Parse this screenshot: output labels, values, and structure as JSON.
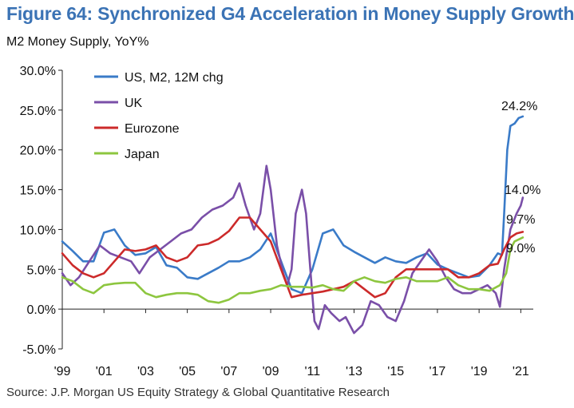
{
  "title": "Figure 64: Synchronized G4 Acceleration in Money Supply Growth",
  "subtitle": "M2 Money Supply, YoY%",
  "source": "Source: J.P. Morgan US Equity Strategy & Global Quantitative Research",
  "colors": {
    "title": "#3b73b5",
    "axis": "#222222"
  },
  "chart_data": {
    "type": "line",
    "title": "Figure 64: Synchronized G4 Acceleration in Money Supply Growth",
    "subtitle": "M2 Money Supply, YoY%",
    "xlabel": "",
    "ylabel": "",
    "xlim": [
      1999,
      2021.6
    ],
    "ylim": [
      -5,
      30
    ],
    "grid": false,
    "legend_position": "top-left",
    "x_ticks": [
      {
        "value": 1999,
        "label": "'99"
      },
      {
        "value": 2001,
        "label": "'01"
      },
      {
        "value": 2003,
        "label": "'03"
      },
      {
        "value": 2005,
        "label": "'05"
      },
      {
        "value": 2007,
        "label": "'07"
      },
      {
        "value": 2009,
        "label": "'09"
      },
      {
        "value": 2011,
        "label": "'11"
      },
      {
        "value": 2013,
        "label": "'13"
      },
      {
        "value": 2015,
        "label": "'15"
      },
      {
        "value": 2017,
        "label": "'17"
      },
      {
        "value": 2019,
        "label": "'19"
      },
      {
        "value": 2021,
        "label": "'21"
      }
    ],
    "y_ticks": [
      {
        "value": 30,
        "label": "30.0%"
      },
      {
        "value": 25,
        "label": "25.0%"
      },
      {
        "value": 20,
        "label": "20.0%"
      },
      {
        "value": 15,
        "label": "15.0%"
      },
      {
        "value": 10,
        "label": "10.0%"
      },
      {
        "value": 5,
        "label": "5.0%"
      },
      {
        "value": 0,
        "label": "0.0%"
      },
      {
        "value": -5,
        "label": "-5.0%"
      }
    ],
    "series": [
      {
        "name": "US, M2, 12M chg",
        "color": "#3a7bc8",
        "end_label": "24.2%",
        "points": [
          [
            1999,
            8.5
          ],
          [
            1999.5,
            7.3
          ],
          [
            2000,
            6.0
          ],
          [
            2000.5,
            6.0
          ],
          [
            2001,
            9.6
          ],
          [
            2001.5,
            10.0
          ],
          [
            2002,
            8.0
          ],
          [
            2002.5,
            6.8
          ],
          [
            2003,
            7.0
          ],
          [
            2003.5,
            7.8
          ],
          [
            2004,
            5.5
          ],
          [
            2004.5,
            5.2
          ],
          [
            2005,
            4.0
          ],
          [
            2005.5,
            3.8
          ],
          [
            2006,
            4.5
          ],
          [
            2006.5,
            5.2
          ],
          [
            2007,
            6.0
          ],
          [
            2007.5,
            6.0
          ],
          [
            2008,
            6.5
          ],
          [
            2008.5,
            7.5
          ],
          [
            2009,
            9.5
          ],
          [
            2009.5,
            6.0
          ],
          [
            2010,
            2.5
          ],
          [
            2010.5,
            2.0
          ],
          [
            2011,
            5.0
          ],
          [
            2011.5,
            9.5
          ],
          [
            2012,
            10.0
          ],
          [
            2012.5,
            8.0
          ],
          [
            2013,
            7.2
          ],
          [
            2013.5,
            6.5
          ],
          [
            2014,
            5.8
          ],
          [
            2014.5,
            6.5
          ],
          [
            2015,
            6.0
          ],
          [
            2015.5,
            5.8
          ],
          [
            2016,
            6.5
          ],
          [
            2016.5,
            7.0
          ],
          [
            2017,
            5.6
          ],
          [
            2017.5,
            5.0
          ],
          [
            2018,
            4.5
          ],
          [
            2018.5,
            4.0
          ],
          [
            2019,
            4.2
          ],
          [
            2019.5,
            5.5
          ],
          [
            2019.9,
            7.0
          ],
          [
            2020.1,
            6.8
          ],
          [
            2020.2,
            12.0
          ],
          [
            2020.35,
            20.0
          ],
          [
            2020.5,
            23.0
          ],
          [
            2020.7,
            23.3
          ],
          [
            2020.9,
            24.0
          ],
          [
            2021.1,
            24.2
          ]
        ]
      },
      {
        "name": "UK",
        "color": "#7a4fa8",
        "end_label": "14.0%",
        "points": [
          [
            1999,
            4.5
          ],
          [
            1999.4,
            3.0
          ],
          [
            1999.8,
            4.0
          ],
          [
            2000.3,
            6.0
          ],
          [
            2000.8,
            8.0
          ],
          [
            2001.3,
            7.0
          ],
          [
            2001.8,
            6.5
          ],
          [
            2002.3,
            6.0
          ],
          [
            2002.7,
            4.5
          ],
          [
            2003.2,
            6.5
          ],
          [
            2003.7,
            7.5
          ],
          [
            2004.2,
            8.5
          ],
          [
            2004.7,
            9.5
          ],
          [
            2005.2,
            10.0
          ],
          [
            2005.7,
            11.5
          ],
          [
            2006.2,
            12.5
          ],
          [
            2006.7,
            13.0
          ],
          [
            2007.2,
            14.0
          ],
          [
            2007.5,
            15.8
          ],
          [
            2007.8,
            13.0
          ],
          [
            2008.2,
            10.0
          ],
          [
            2008.5,
            12.0
          ],
          [
            2008.8,
            18.0
          ],
          [
            2009.0,
            15.0
          ],
          [
            2009.3,
            8.0
          ],
          [
            2009.6,
            4.5
          ],
          [
            2009.8,
            3.0
          ],
          [
            2010.0,
            5.0
          ],
          [
            2010.2,
            12.0
          ],
          [
            2010.5,
            15.0
          ],
          [
            2010.7,
            12.0
          ],
          [
            2010.9,
            5.0
          ],
          [
            2011.1,
            -1.5
          ],
          [
            2011.3,
            -2.5
          ],
          [
            2011.6,
            0.5
          ],
          [
            2011.9,
            -0.5
          ],
          [
            2012.3,
            -1.5
          ],
          [
            2012.6,
            -1.0
          ],
          [
            2013.0,
            -3.0
          ],
          [
            2013.4,
            -2.0
          ],
          [
            2013.8,
            1.0
          ],
          [
            2014.2,
            0.5
          ],
          [
            2014.6,
            -1.0
          ],
          [
            2015.0,
            -1.5
          ],
          [
            2015.4,
            1.0
          ],
          [
            2015.8,
            4.5
          ],
          [
            2016.2,
            6.0
          ],
          [
            2016.6,
            7.5
          ],
          [
            2017.0,
            6.0
          ],
          [
            2017.4,
            4.0
          ],
          [
            2017.8,
            2.5
          ],
          [
            2018.2,
            2.0
          ],
          [
            2018.6,
            2.0
          ],
          [
            2019.0,
            2.5
          ],
          [
            2019.4,
            3.0
          ],
          [
            2019.8,
            2.0
          ],
          [
            2020.0,
            0.3
          ],
          [
            2020.2,
            5.0
          ],
          [
            2020.5,
            10.0
          ],
          [
            2020.8,
            12.0
          ],
          [
            2021.0,
            13.0
          ],
          [
            2021.1,
            14.0
          ]
        ]
      },
      {
        "name": "Eurozone",
        "color": "#cc2a2a",
        "end_label": "9.7%",
        "points": [
          [
            1999,
            7.0
          ],
          [
            1999.5,
            5.5
          ],
          [
            2000,
            4.5
          ],
          [
            2000.5,
            4.0
          ],
          [
            2001,
            4.5
          ],
          [
            2001.5,
            6.0
          ],
          [
            2002,
            7.5
          ],
          [
            2002.5,
            7.3
          ],
          [
            2003,
            7.5
          ],
          [
            2003.5,
            8.0
          ],
          [
            2004,
            6.5
          ],
          [
            2004.5,
            6.0
          ],
          [
            2005,
            6.5
          ],
          [
            2005.5,
            8.0
          ],
          [
            2006,
            8.2
          ],
          [
            2006.5,
            8.8
          ],
          [
            2007,
            9.8
          ],
          [
            2007.5,
            11.5
          ],
          [
            2008,
            11.5
          ],
          [
            2008.5,
            10.0
          ],
          [
            2009,
            8.5
          ],
          [
            2009.5,
            5.0
          ],
          [
            2010,
            1.5
          ],
          [
            2010.5,
            1.8
          ],
          [
            2011,
            2.0
          ],
          [
            2011.5,
            2.2
          ],
          [
            2012,
            2.5
          ],
          [
            2012.5,
            2.8
          ],
          [
            2013,
            3.5
          ],
          [
            2013.5,
            2.5
          ],
          [
            2014,
            1.5
          ],
          [
            2014.5,
            2.0
          ],
          [
            2015,
            4.0
          ],
          [
            2015.5,
            5.0
          ],
          [
            2016,
            5.0
          ],
          [
            2016.5,
            5.0
          ],
          [
            2017,
            5.0
          ],
          [
            2017.5,
            5.0
          ],
          [
            2018,
            4.0
          ],
          [
            2018.5,
            4.0
          ],
          [
            2019,
            4.5
          ],
          [
            2019.5,
            5.5
          ],
          [
            2019.9,
            5.7
          ],
          [
            2020.2,
            7.5
          ],
          [
            2020.5,
            9.0
          ],
          [
            2020.8,
            9.5
          ],
          [
            2021.1,
            9.7
          ]
        ]
      },
      {
        "name": "Japan",
        "color": "#8dc63f",
        "end_label": "9.0%",
        "points": [
          [
            1999,
            4.0
          ],
          [
            1999.5,
            3.5
          ],
          [
            2000,
            2.5
          ],
          [
            2000.5,
            2.0
          ],
          [
            2001,
            3.0
          ],
          [
            2001.5,
            3.2
          ],
          [
            2002,
            3.3
          ],
          [
            2002.5,
            3.3
          ],
          [
            2003,
            2.0
          ],
          [
            2003.5,
            1.5
          ],
          [
            2004,
            1.8
          ],
          [
            2004.5,
            2.0
          ],
          [
            2005,
            2.0
          ],
          [
            2005.5,
            1.8
          ],
          [
            2006,
            1.0
          ],
          [
            2006.5,
            0.8
          ],
          [
            2007,
            1.2
          ],
          [
            2007.5,
            2.0
          ],
          [
            2008,
            2.0
          ],
          [
            2008.5,
            2.3
          ],
          [
            2009,
            2.5
          ],
          [
            2009.5,
            3.0
          ],
          [
            2010,
            2.8
          ],
          [
            2010.5,
            2.8
          ],
          [
            2011,
            2.7
          ],
          [
            2011.5,
            3.0
          ],
          [
            2012,
            2.5
          ],
          [
            2012.5,
            2.3
          ],
          [
            2013,
            3.5
          ],
          [
            2013.5,
            4.0
          ],
          [
            2014,
            3.5
          ],
          [
            2014.5,
            3.3
          ],
          [
            2015,
            3.8
          ],
          [
            2015.5,
            4.0
          ],
          [
            2016,
            3.5
          ],
          [
            2016.5,
            3.5
          ],
          [
            2017,
            3.5
          ],
          [
            2017.5,
            4.0
          ],
          [
            2018,
            3.0
          ],
          [
            2018.5,
            2.5
          ],
          [
            2019,
            2.5
          ],
          [
            2019.5,
            2.3
          ],
          [
            2020,
            3.0
          ],
          [
            2020.3,
            4.5
          ],
          [
            2020.5,
            7.5
          ],
          [
            2020.7,
            8.5
          ],
          [
            2021.1,
            9.0
          ]
        ]
      }
    ]
  }
}
